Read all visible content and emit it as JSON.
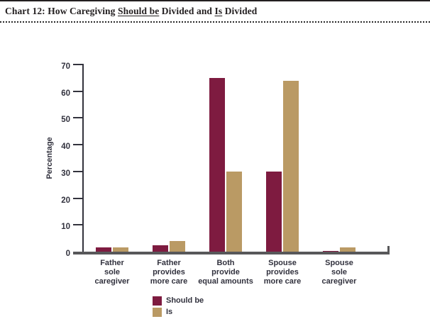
{
  "header": {
    "title_parts": [
      {
        "text": "Chart 12: How Caregiving ",
        "underline": false
      },
      {
        "text": "Should be",
        "underline": true
      },
      {
        "text": " Divided and ",
        "underline": false
      },
      {
        "text": "Is",
        "underline": true
      },
      {
        "text": " Divided",
        "underline": false
      }
    ]
  },
  "chart_data": {
    "type": "bar",
    "ylabel": "Percentage",
    "ylim": [
      0,
      70
    ],
    "ytick_interval": 10,
    "ytick_labels": [
      "0",
      "10",
      "20",
      "30",
      "40",
      "50",
      "60",
      "70"
    ],
    "grid": false,
    "legend_position": "bottom-left",
    "categories": [
      [
        "Father",
        "sole",
        "caregiver"
      ],
      [
        "Father",
        "provides",
        "more care"
      ],
      [
        "Both",
        "provide",
        "equal amounts"
      ],
      [
        "Spouse",
        "provides",
        "more care"
      ],
      [
        "Spouse",
        "sole",
        "caregiver"
      ]
    ],
    "series": [
      {
        "name": "Should be",
        "color": "#7E1B40",
        "values": [
          1.5,
          2.5,
          65,
          30,
          0.3
        ]
      },
      {
        "name": "Is",
        "color": "#BA9A64",
        "values": [
          1.5,
          4,
          30,
          64,
          1.5
        ]
      }
    ]
  },
  "colors": {
    "axis_dark": "#33333D",
    "axis_gray": "#58585A",
    "text": "#32323E",
    "title": "#231F20"
  }
}
